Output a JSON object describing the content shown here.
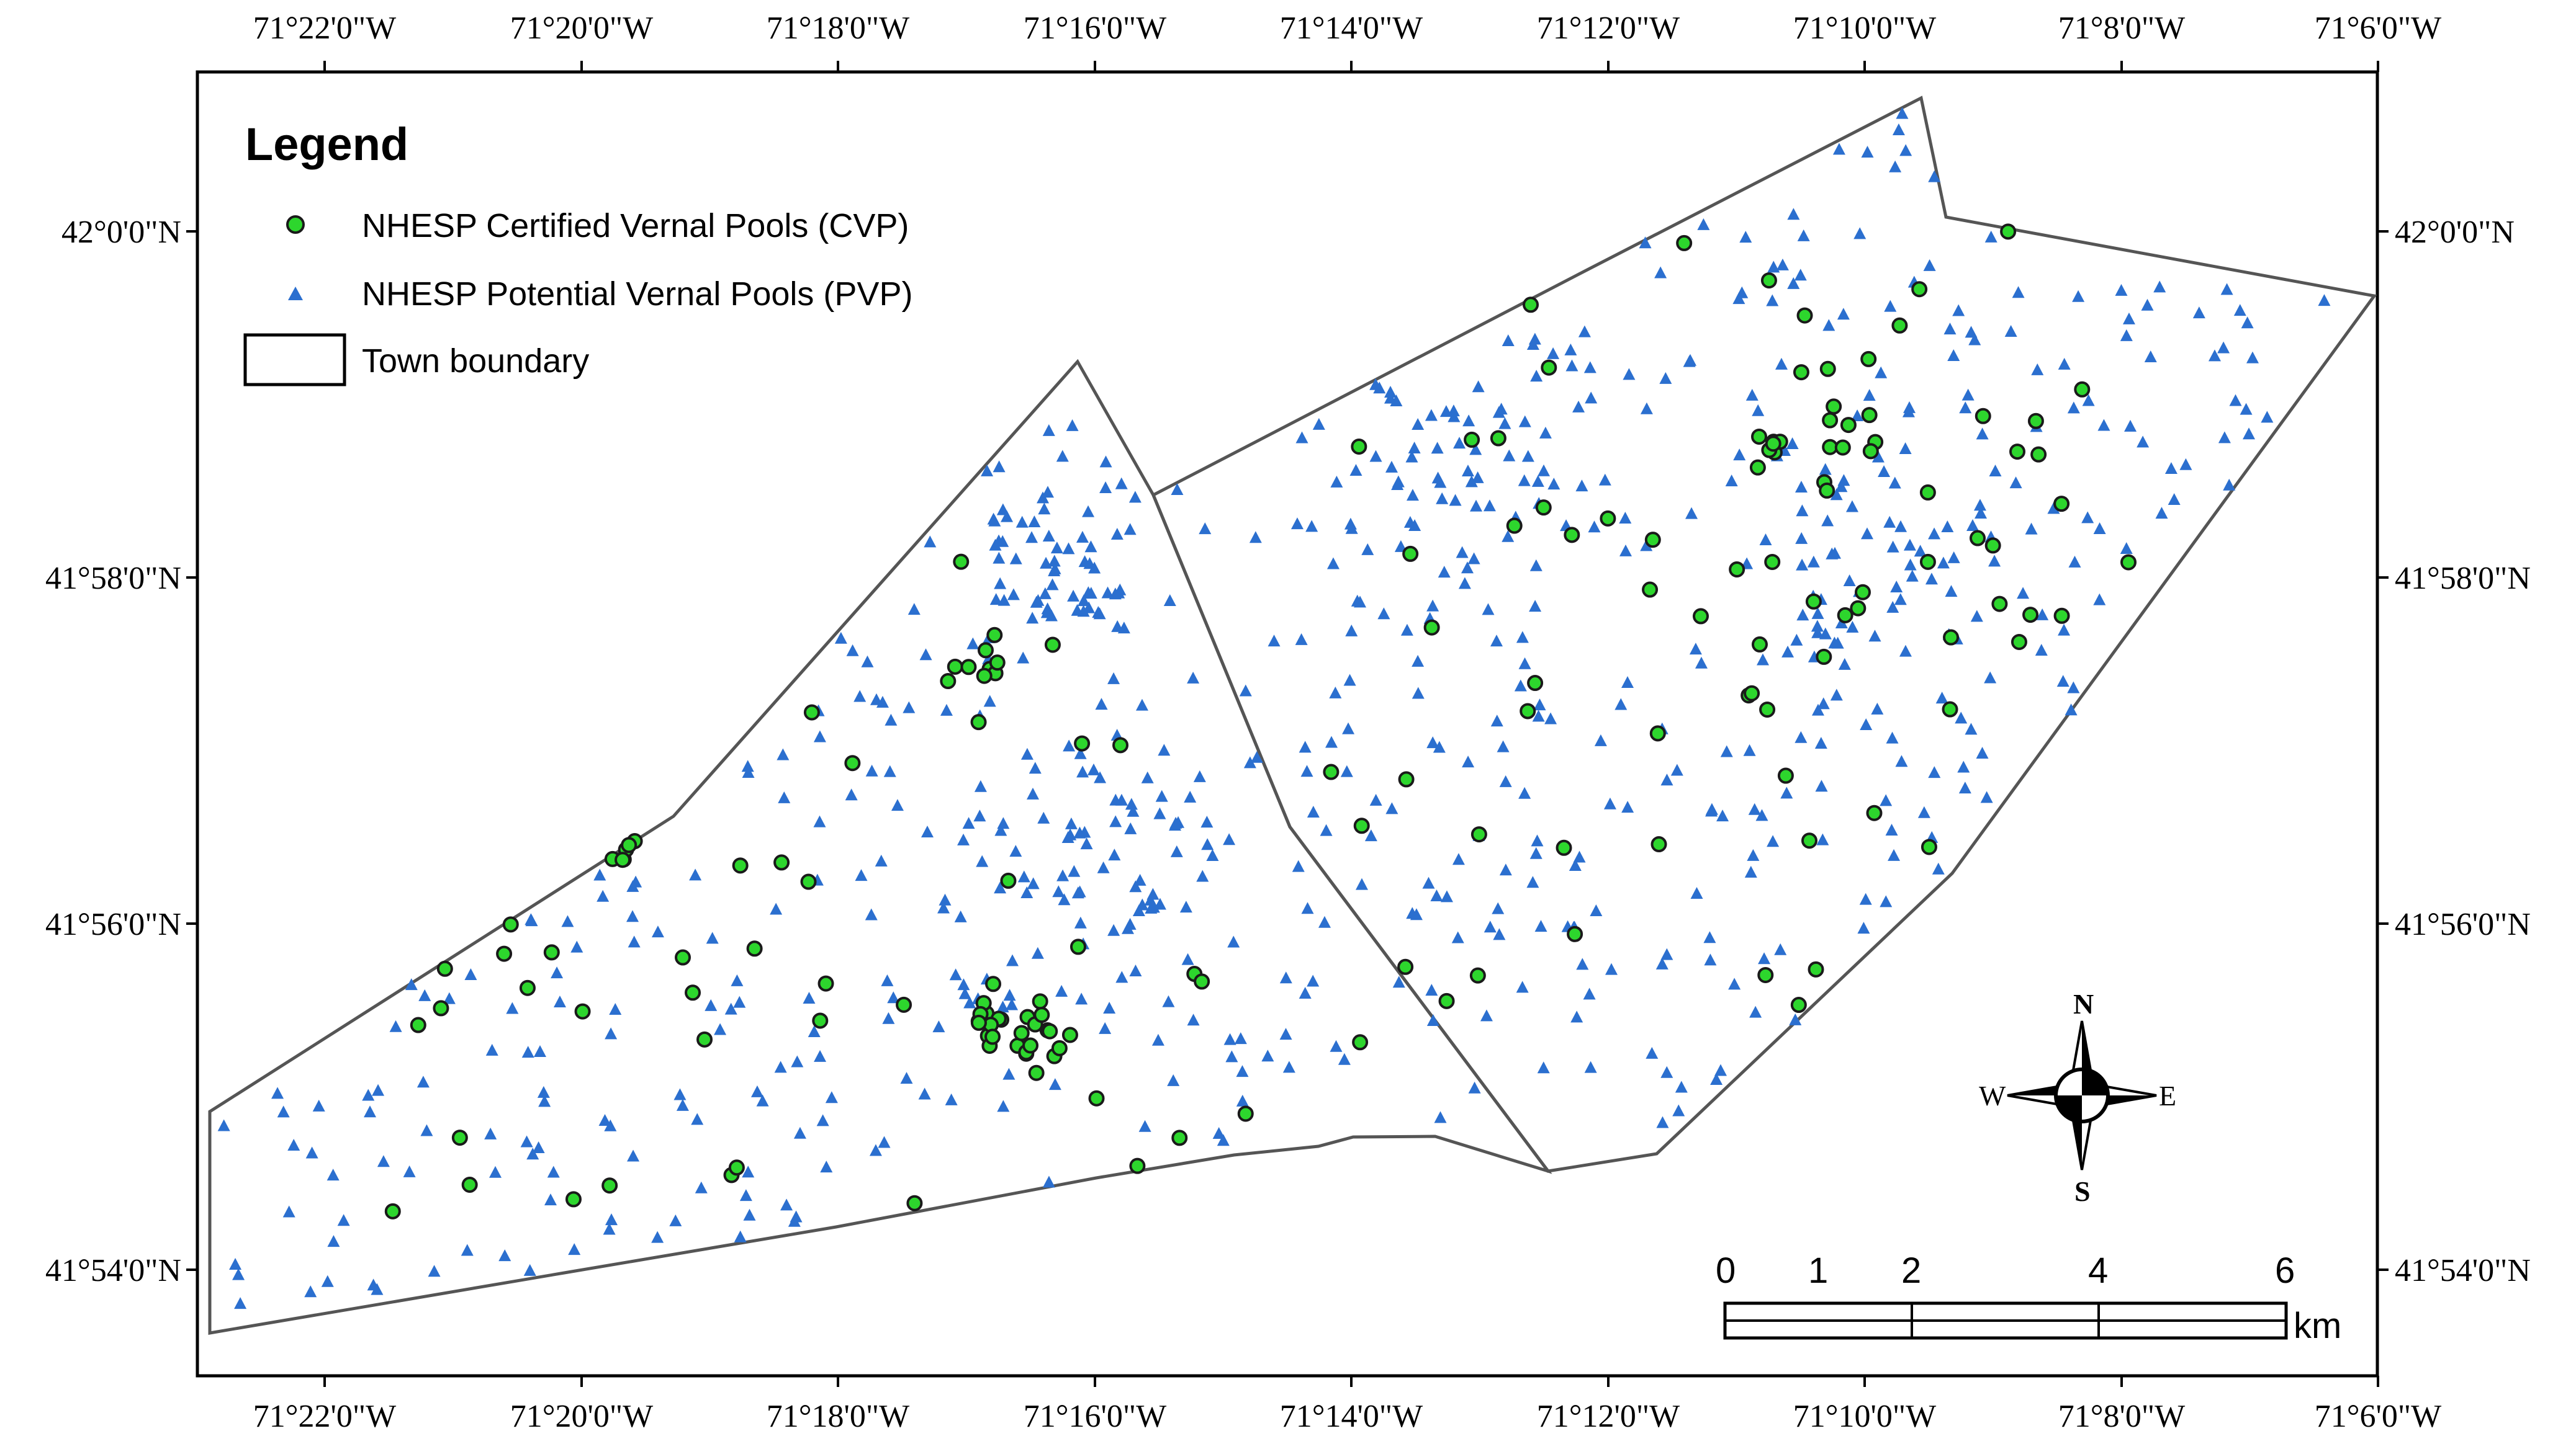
{
  "map": {
    "x_ticks": [
      "71°22'0\"W",
      "71°20'0\"W",
      "71°18'0\"W",
      "71°16'0\"W",
      "71°14'0\"W",
      "71°12'0\"W",
      "71°10'0\"W",
      "71°8'0\"W",
      "71°6'0\"W"
    ],
    "y_ticks": [
      "42°0'0\"N",
      "41°58'0\"N",
      "41°56'0\"N",
      "41°54'0\"N"
    ],
    "legend": {
      "title": "Legend",
      "items": [
        {
          "label": "NHESP Certified Vernal Pools (CVP)",
          "symbol": "green-circle",
          "color": "#2dd62d"
        },
        {
          "label": "NHESP Potential Vernal Pools (PVP)",
          "symbol": "blue-triangle",
          "color": "#2b6fcf"
        },
        {
          "label": "Town boundary",
          "symbol": "rectangle-outline",
          "color": "#000000"
        }
      ]
    },
    "scale_bar": {
      "labels": [
        "0",
        "1",
        "2",
        "4",
        "6"
      ],
      "unit": "km"
    },
    "compass": {
      "n": "N",
      "s": "S",
      "e": "E",
      "w": "W"
    },
    "colors": {
      "cvp_fill": "#2dd62d",
      "cvp_stroke": "#1a1a1a",
      "pvp_fill": "#2b6fcf",
      "boundary": "#555555"
    }
  }
}
